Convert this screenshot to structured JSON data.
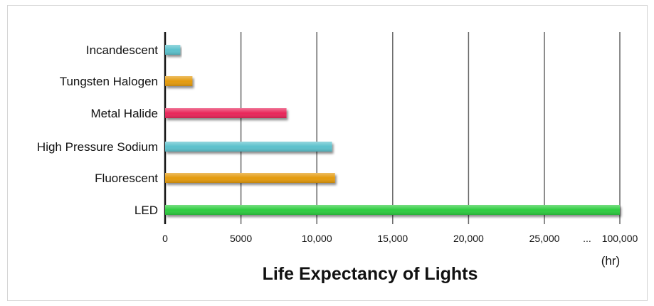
{
  "chart_data": {
    "type": "bar",
    "orientation": "horizontal",
    "title": "Life Expectancy of Lights",
    "xlabel": "(hr)",
    "ylabel": "",
    "categories": [
      "Incandescent",
      "Tungsten Halogen",
      "Metal Halide",
      "High Pressure Sodium",
      "Fluorescent",
      "LED"
    ],
    "values": [
      1000,
      1800,
      8000,
      11000,
      11200,
      100000
    ],
    "colors": [
      "#5bc1cc",
      "#e49b0f",
      "#e8285a",
      "#5bc1cc",
      "#e49b0f",
      "#2ecc40"
    ],
    "x_ticks": [
      "0",
      "5000",
      "10,000",
      "15,000",
      "20,000",
      "25,000",
      "100,000"
    ],
    "x_tick_values": [
      0,
      5000,
      10000,
      15000,
      20000,
      25000,
      100000
    ],
    "axis_break_symbol": "...",
    "grid": true
  }
}
